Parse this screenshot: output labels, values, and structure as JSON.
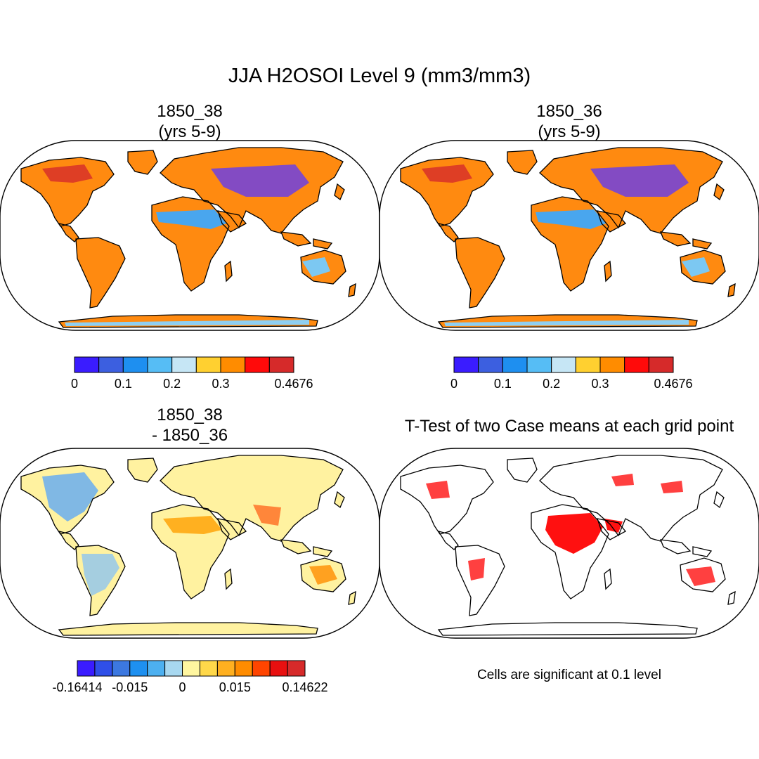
{
  "figure": {
    "title": "JJA H2OSOI Level 9 (mm3/mm3)",
    "footnote": "Cells are significant at 0.1 level"
  },
  "panels": [
    {
      "id": "case-a",
      "title_line1": "1850_38",
      "title_line2": "(yrs 5-9)",
      "colorbar": {
        "colors": [
          "#3a1cff",
          "#3c5fe0",
          "#1e8ff0",
          "#56bdf5",
          "#c6e6f5",
          "#ffd030",
          "#ff8c00",
          "#ff0a0a",
          "#d62a2a"
        ],
        "tick_labels": [
          "0",
          "0.1",
          "0.2",
          "0.3",
          "0.4676"
        ],
        "tick_at_box_edge": [
          0,
          2,
          4,
          6,
          9
        ]
      }
    },
    {
      "id": "case-b",
      "title_line1": "1850_36",
      "title_line2": "(yrs 5-9)",
      "colorbar": {
        "colors": [
          "#3a1cff",
          "#3c5fe0",
          "#1e8ff0",
          "#56bdf5",
          "#c6e6f5",
          "#ffd030",
          "#ff8c00",
          "#ff0a0a",
          "#d62a2a"
        ],
        "tick_labels": [
          "0",
          "0.1",
          "0.2",
          "0.3",
          "0.4676"
        ],
        "tick_at_box_edge": [
          0,
          2,
          4,
          6,
          9
        ]
      }
    },
    {
      "id": "difference",
      "title_line1": "1850_38",
      "title_line2": "- 1850_36",
      "colorbar": {
        "colors": [
          "#3a1cff",
          "#2f4fe8",
          "#3c78e0",
          "#1e90f0",
          "#4db0f0",
          "#a8d8f0",
          "#fff6a0",
          "#ffd84a",
          "#ffb020",
          "#ff8c00",
          "#ff4500",
          "#e81010",
          "#d62a2a"
        ],
        "tick_labels": [
          "-0.16414",
          "-0.015",
          "0",
          "0.015",
          "0.14622"
        ],
        "tick_at_box_edge": [
          0,
          3,
          6,
          9,
          13
        ]
      }
    },
    {
      "id": "t-test",
      "title_line1": "T-Test of two Case means at each grid point"
    }
  ]
}
